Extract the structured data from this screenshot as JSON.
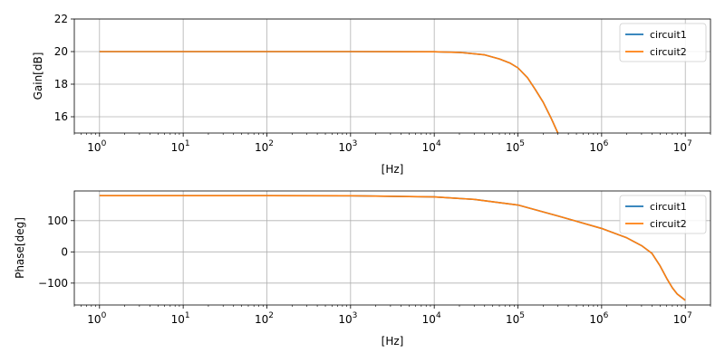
{
  "chart_data": [
    {
      "type": "line",
      "xscale": "log",
      "xlim": [
        0.5,
        20000000
      ],
      "ylim": [
        15,
        22
      ],
      "xlabel": "[Hz]",
      "ylabel": "Gain[dB]",
      "grid": true,
      "legend_position": "top-right",
      "x_ticks": [
        1,
        10,
        100,
        1000,
        10000,
        100000,
        1000000,
        10000000
      ],
      "x_tick_labels": [
        [
          "10",
          "0"
        ],
        [
          "10",
          "1"
        ],
        [
          "10",
          "2"
        ],
        [
          "10",
          "3"
        ],
        [
          "10",
          "4"
        ],
        [
          "10",
          "5"
        ],
        [
          "10",
          "6"
        ],
        [
          "10",
          "7"
        ]
      ],
      "y_ticks": [
        16,
        18,
        20,
        22
      ],
      "y_tick_labels": [
        "16",
        "18",
        "20",
        "22"
      ],
      "series": [
        {
          "name": "circuit1",
          "color": "#1f77b4",
          "x": [
            1,
            10,
            100,
            1000,
            10000,
            20000,
            40000,
            60000,
            80000,
            100000,
            130000,
            160000,
            200000,
            250000,
            300000,
            400000
          ],
          "y": [
            20,
            20,
            20,
            20,
            19.99,
            19.95,
            19.8,
            19.55,
            19.3,
            19.0,
            18.4,
            17.7,
            16.9,
            15.9,
            15.0,
            13.6
          ]
        },
        {
          "name": "circuit2",
          "color": "#ff7f0e",
          "x": [
            1,
            10,
            100,
            1000,
            10000,
            20000,
            40000,
            60000,
            80000,
            100000,
            130000,
            160000,
            200000,
            250000,
            300000,
            400000
          ],
          "y": [
            20,
            20,
            20,
            20,
            19.99,
            19.95,
            19.8,
            19.55,
            19.3,
            19.0,
            18.4,
            17.7,
            16.9,
            15.9,
            15.0,
            13.6
          ]
        }
      ]
    },
    {
      "type": "line",
      "xscale": "log",
      "xlim": [
        0.5,
        20000000
      ],
      "ylim": [
        -170,
        195
      ],
      "xlabel": "[Hz]",
      "ylabel": "Phase[deg]",
      "grid": true,
      "legend_position": "top-right",
      "x_ticks": [
        1,
        10,
        100,
        1000,
        10000,
        100000,
        1000000,
        10000000
      ],
      "x_tick_labels": [
        [
          "10",
          "0"
        ],
        [
          "10",
          "1"
        ],
        [
          "10",
          "2"
        ],
        [
          "10",
          "3"
        ],
        [
          "10",
          "4"
        ],
        [
          "10",
          "5"
        ],
        [
          "10",
          "6"
        ],
        [
          "10",
          "7"
        ]
      ],
      "y_ticks": [
        -100,
        0,
        100
      ],
      "y_tick_labels": [
        "−100",
        "0",
        "100"
      ],
      "series": [
        {
          "name": "circuit1",
          "color": "#1f77b4",
          "x": [
            1,
            10,
            100,
            1000,
            10000,
            30000,
            100000,
            300000,
            1000000,
            2000000,
            3000000,
            4000000,
            5000000,
            6000000,
            7000000,
            8000000,
            10000000
          ],
          "y": [
            180,
            180,
            180,
            179.5,
            176,
            168,
            150,
            115,
            75,
            45,
            20,
            -5,
            -45,
            -85,
            -115,
            -135,
            -155
          ]
        },
        {
          "name": "circuit2",
          "color": "#ff7f0e",
          "x": [
            1,
            10,
            100,
            1000,
            10000,
            30000,
            100000,
            300000,
            1000000,
            2000000,
            3000000,
            4000000,
            5000000,
            6000000,
            7000000,
            8000000,
            10000000
          ],
          "y": [
            180,
            180,
            180,
            179.5,
            176,
            168,
            150,
            115,
            75,
            45,
            20,
            -5,
            -45,
            -85,
            -115,
            -135,
            -155
          ]
        }
      ]
    }
  ]
}
